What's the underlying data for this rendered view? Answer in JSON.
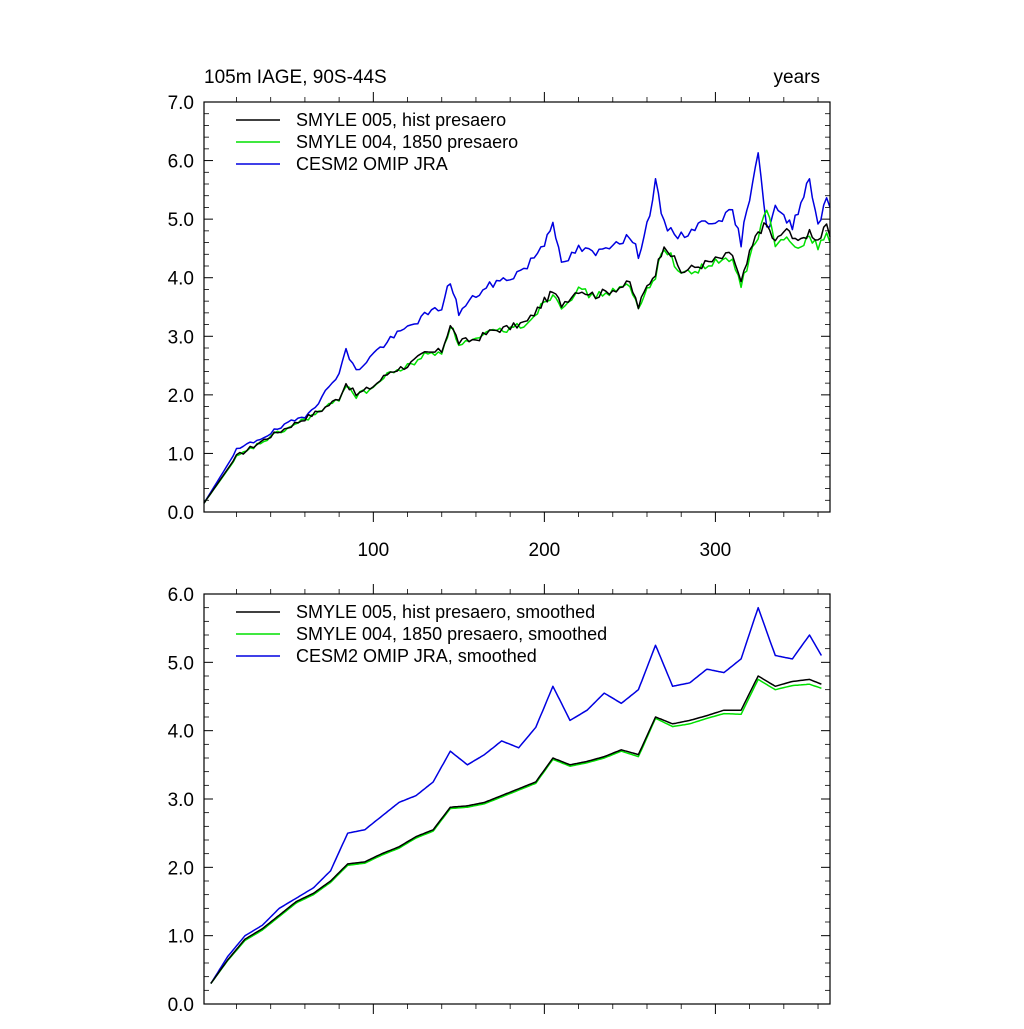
{
  "chart_data": [
    {
      "type": "line",
      "title": "105m IAGE, 90S-44S",
      "subtitle": "years",
      "xlim": [
        1,
        367
      ],
      "ylim": [
        0.0,
        7.0
      ],
      "xticks": [
        100,
        200,
        300
      ],
      "xtick_labels": [
        "100",
        "200",
        "300"
      ],
      "yticks": [
        0.0,
        1.0,
        2.0,
        3.0,
        4.0,
        5.0,
        6.0,
        7.0
      ],
      "ytick_labels": [
        "0.0",
        "1.0",
        "2.0",
        "3.0",
        "4.0",
        "5.0",
        "6.0",
        "7.0"
      ],
      "legend_position": "top-left",
      "grid": false,
      "series": [
        {
          "name": "SMYLE 005, hist presaero",
          "color": "#000000",
          "x": [
            1,
            20,
            40,
            60,
            70,
            80,
            84,
            90,
            100,
            110,
            120,
            130,
            140,
            145,
            150,
            160,
            170,
            180,
            190,
            200,
            205,
            210,
            220,
            230,
            240,
            250,
            255,
            260,
            265,
            270,
            280,
            290,
            300,
            310,
            315,
            320,
            325,
            330,
            335,
            340,
            345,
            350,
            355,
            360,
            365,
            367
          ],
          "values": [
            0.15,
            0.95,
            1.3,
            1.6,
            1.75,
            1.95,
            2.2,
            2.0,
            2.15,
            2.4,
            2.5,
            2.7,
            2.75,
            3.2,
            2.9,
            2.95,
            3.1,
            3.15,
            3.25,
            3.6,
            3.75,
            3.55,
            3.8,
            3.7,
            3.8,
            3.9,
            3.5,
            3.85,
            4.1,
            4.6,
            4.1,
            4.2,
            4.3,
            4.4,
            3.9,
            4.4,
            4.8,
            4.9,
            4.6,
            4.8,
            4.75,
            4.6,
            4.8,
            4.65,
            4.85,
            4.7
          ]
        },
        {
          "name": "SMYLE 004, 1850 presaero",
          "color": "#00e000",
          "x": [
            1,
            20,
            40,
            60,
            70,
            80,
            84,
            90,
            100,
            110,
            120,
            130,
            140,
            145,
            150,
            160,
            170,
            180,
            190,
            200,
            205,
            210,
            220,
            230,
            240,
            250,
            255,
            260,
            265,
            270,
            280,
            290,
            300,
            310,
            315,
            320,
            325,
            330,
            335,
            340,
            345,
            350,
            355,
            360,
            365,
            367
          ],
          "values": [
            0.15,
            0.93,
            1.28,
            1.58,
            1.73,
            1.93,
            2.18,
            1.98,
            2.13,
            2.38,
            2.48,
            2.68,
            2.73,
            3.18,
            2.88,
            2.93,
            3.08,
            3.13,
            3.23,
            3.58,
            3.73,
            3.53,
            3.78,
            3.68,
            3.78,
            3.85,
            3.45,
            3.8,
            4.05,
            4.55,
            4.05,
            4.15,
            4.25,
            4.3,
            3.85,
            4.35,
            4.7,
            5.2,
            4.5,
            4.7,
            4.65,
            4.5,
            4.7,
            4.55,
            4.75,
            4.6
          ]
        },
        {
          "name": "CESM2 OMIP JRA",
          "color": "#0000e0",
          "x": [
            1,
            20,
            40,
            60,
            70,
            80,
            84,
            90,
            100,
            110,
            120,
            130,
            140,
            145,
            150,
            160,
            170,
            180,
            190,
            200,
            205,
            210,
            220,
            230,
            240,
            250,
            255,
            260,
            265,
            270,
            280,
            290,
            300,
            310,
            315,
            320,
            325,
            330,
            335,
            340,
            345,
            350,
            355,
            360,
            365,
            367
          ],
          "values": [
            0.15,
            1.05,
            1.35,
            1.65,
            1.95,
            2.4,
            2.75,
            2.4,
            2.7,
            2.95,
            3.15,
            3.35,
            3.5,
            3.95,
            3.4,
            3.7,
            3.9,
            4.0,
            4.2,
            4.6,
            5.0,
            4.2,
            4.5,
            4.4,
            4.6,
            4.7,
            4.4,
            4.9,
            5.6,
            4.9,
            4.7,
            4.9,
            5.0,
            5.1,
            4.6,
            5.4,
            6.2,
            4.8,
            5.2,
            5.0,
            4.9,
            5.3,
            5.7,
            4.9,
            5.4,
            5.2
          ]
        }
      ]
    },
    {
      "type": "line",
      "xlim": [
        1,
        367
      ],
      "ylim": [
        0.0,
        6.0
      ],
      "xticks": [
        100,
        200,
        300
      ],
      "yticks": [
        0.0,
        1.0,
        2.0,
        3.0,
        4.0,
        5.0,
        6.0
      ],
      "ytick_labels": [
        "0.0",
        "1.0",
        "2.0",
        "3.0",
        "4.0",
        "5.0",
        "6.0"
      ],
      "legend_position": "top-left",
      "grid": false,
      "series": [
        {
          "name": "SMYLE 005, hist presaero, smoothed",
          "color": "#000000",
          "x": [
            5,
            15,
            25,
            35,
            45,
            55,
            65,
            75,
            85,
            95,
            105,
            115,
            125,
            135,
            145,
            155,
            165,
            175,
            185,
            195,
            205,
            215,
            225,
            235,
            245,
            255,
            265,
            275,
            285,
            295,
            305,
            315,
            325,
            335,
            345,
            355,
            362
          ],
          "values": [
            0.3,
            0.65,
            0.95,
            1.1,
            1.3,
            1.5,
            1.62,
            1.8,
            2.05,
            2.08,
            2.2,
            2.3,
            2.45,
            2.55,
            2.88,
            2.9,
            2.95,
            3.05,
            3.15,
            3.25,
            3.6,
            3.5,
            3.55,
            3.62,
            3.72,
            3.65,
            4.2,
            4.1,
            4.15,
            4.22,
            4.3,
            4.3,
            4.8,
            4.65,
            4.72,
            4.75,
            4.68
          ]
        },
        {
          "name": "SMYLE 004, 1850 presaero, smoothed",
          "color": "#00e000",
          "x": [
            5,
            15,
            25,
            35,
            45,
            55,
            65,
            75,
            85,
            95,
            105,
            115,
            125,
            135,
            145,
            155,
            165,
            175,
            185,
            195,
            205,
            215,
            225,
            235,
            245,
            255,
            265,
            275,
            285,
            295,
            305,
            315,
            325,
            335,
            345,
            355,
            362
          ],
          "values": [
            0.3,
            0.64,
            0.93,
            1.08,
            1.28,
            1.48,
            1.6,
            1.78,
            2.03,
            2.06,
            2.18,
            2.28,
            2.43,
            2.53,
            2.86,
            2.88,
            2.93,
            3.03,
            3.13,
            3.23,
            3.58,
            3.48,
            3.53,
            3.6,
            3.7,
            3.62,
            4.18,
            4.06,
            4.1,
            4.18,
            4.25,
            4.24,
            4.75,
            4.6,
            4.66,
            4.68,
            4.62
          ]
        },
        {
          "name": "CESM2 OMIP JRA, smoothed",
          "color": "#0000e0",
          "x": [
            5,
            15,
            25,
            35,
            45,
            55,
            65,
            75,
            85,
            95,
            105,
            115,
            125,
            135,
            145,
            155,
            165,
            175,
            185,
            195,
            205,
            215,
            225,
            235,
            245,
            255,
            265,
            275,
            285,
            295,
            305,
            315,
            325,
            335,
            345,
            355,
            362
          ],
          "values": [
            0.3,
            0.7,
            1.0,
            1.15,
            1.4,
            1.55,
            1.7,
            1.95,
            2.5,
            2.55,
            2.75,
            2.95,
            3.05,
            3.25,
            3.7,
            3.5,
            3.65,
            3.85,
            3.75,
            4.05,
            4.65,
            4.15,
            4.3,
            4.55,
            4.4,
            4.6,
            5.25,
            4.65,
            4.7,
            4.9,
            4.85,
            5.05,
            5.8,
            5.1,
            5.05,
            5.4,
            5.1
          ]
        }
      ]
    }
  ]
}
